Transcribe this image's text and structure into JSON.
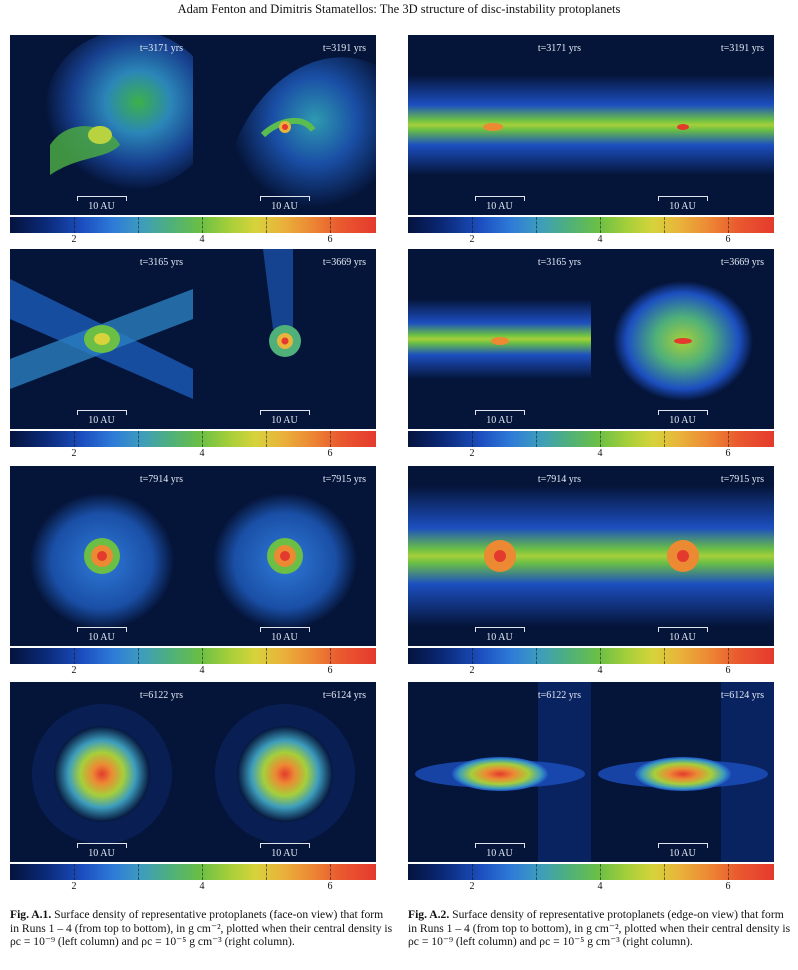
{
  "header": {
    "text": "Adam Fenton  and Dimitris Stamatellos: The 3D structure of disc-instability protoplanets"
  },
  "figures": [
    {
      "id": "left",
      "rows": [
        {
          "panels": [
            {
              "time": "t=3171 yrs",
              "scale": "10 AU"
            },
            {
              "time": "t=3191 yrs",
              "scale": "10 AU"
            }
          ],
          "ticks": [
            "2",
            "4",
            "6"
          ]
        },
        {
          "panels": [
            {
              "time": "t=3165 yrs",
              "scale": "10 AU"
            },
            {
              "time": "t=3669 yrs",
              "scale": "10 AU"
            }
          ],
          "ticks": [
            "2",
            "4",
            "6"
          ]
        },
        {
          "panels": [
            {
              "time": "t=7914 yrs",
              "scale": "10 AU"
            },
            {
              "time": "t=7915 yrs",
              "scale": "10 AU"
            }
          ],
          "ticks": [
            "2",
            "4",
            "6"
          ]
        },
        {
          "panels": [
            {
              "time": "t=6122 yrs",
              "scale": "10 AU"
            },
            {
              "time": "t=6124 yrs",
              "scale": "10 AU"
            }
          ],
          "ticks": [
            "2",
            "4",
            "6"
          ]
        }
      ],
      "caption": {
        "label": "Fig. A.1.",
        "text": " Surface density of representative protoplanets (face-on view) that form in Runs 1 – 4 (from top to bottom), in g cm⁻², plotted when their central density is ρc = 10⁻⁹ (left column) and ρc = 10⁻⁵ g cm⁻³ (right column)."
      }
    },
    {
      "id": "right",
      "rows": [
        {
          "panels": [
            {
              "time": "t=3171 yrs",
              "scale": "10 AU"
            },
            {
              "time": "t=3191 yrs",
              "scale": "10 AU"
            }
          ],
          "ticks": [
            "2",
            "4",
            "6"
          ]
        },
        {
          "panels": [
            {
              "time": "t=3165 yrs",
              "scale": "10 AU"
            },
            {
              "time": "t=3669 yrs",
              "scale": "10 AU"
            }
          ],
          "ticks": [
            "2",
            "4",
            "6"
          ]
        },
        {
          "panels": [
            {
              "time": "t=7914 yrs",
              "scale": "10 AU"
            },
            {
              "time": "t=7915 yrs",
              "scale": "10 AU"
            }
          ],
          "ticks": [
            "2",
            "4",
            "6"
          ]
        },
        {
          "panels": [
            {
              "time": "t=6122 yrs",
              "scale": "10 AU"
            },
            {
              "time": "t=6124 yrs",
              "scale": "10 AU"
            }
          ],
          "ticks": [
            "2",
            "4",
            "6"
          ]
        }
      ],
      "caption": {
        "label": "Fig. A.2.",
        "text": " Surface density of representative protoplanets (edge-on view) that form in Runs 1 – 4 (from top to bottom), in g cm⁻², plotted when their central density is ρc = 10⁻⁹ (left column) and ρc = 10⁻⁵ g cm⁻³ (right column)."
      }
    }
  ]
}
